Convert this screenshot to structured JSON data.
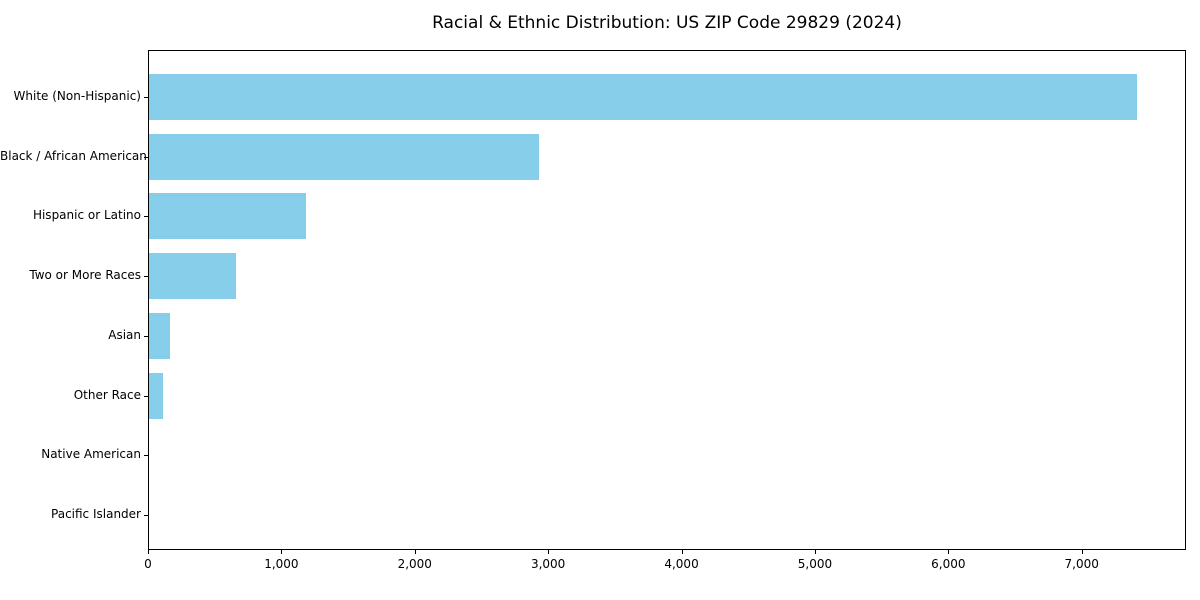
{
  "chart_data": {
    "type": "bar",
    "orientation": "horizontal",
    "title": "Racial & Ethnic Distribution: US ZIP Code 29829 (2024)",
    "categories": [
      "White (Non-Hispanic)",
      "Black / African American",
      "Hispanic or Latino",
      "Two or More Races",
      "Asian",
      "Other Race",
      "Native American",
      "Pacific Islander"
    ],
    "values": [
      7410,
      2925,
      1175,
      655,
      158,
      108,
      0,
      0
    ],
    "bar_color": "#87CEEB",
    "xlim": [
      0,
      7782
    ],
    "x_ticks": [
      0,
      1000,
      2000,
      3000,
      4000,
      5000,
      6000,
      7000
    ],
    "x_tick_labels": [
      "0",
      "1,000",
      "2,000",
      "3,000",
      "4,000",
      "5,000",
      "6,000",
      "7,000"
    ],
    "xlabel": "",
    "ylabel": "",
    "grid": false,
    "legend": "none",
    "frame": "full-box"
  }
}
